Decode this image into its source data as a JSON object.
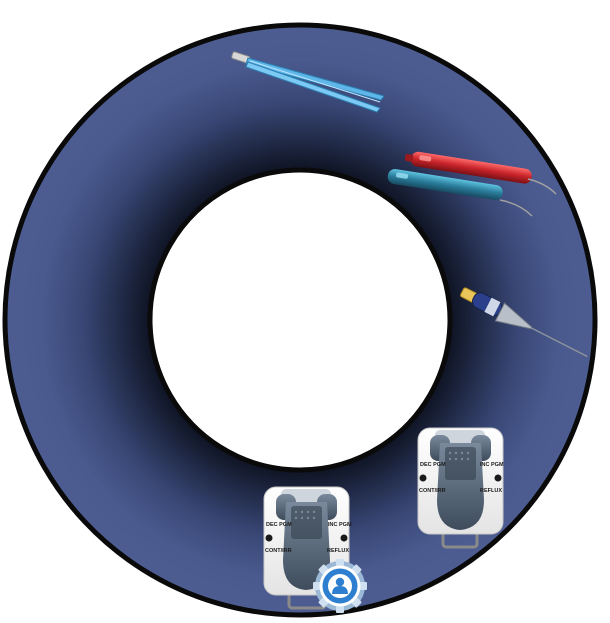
{
  "ring": {
    "outer_color": "#4a5a8e",
    "inner_shadow_color": "#0d1220",
    "border_color": "#0a0a0a"
  },
  "tools": [
    {
      "name": "forceps",
      "color": "#5fb6e8"
    },
    {
      "name": "red-pen-electrode",
      "color": "#c8242a"
    },
    {
      "name": "teal-pen-electrode",
      "color": "#2a7d9c"
    },
    {
      "name": "cone-probe",
      "color": "#2b3f8a"
    }
  ],
  "pedal_left": {
    "label_tl": "DEC PGM",
    "label_tr": "INC PGM",
    "label_bl": "CONT/IRR",
    "label_br": "REFLUX"
  },
  "pedal_right": {
    "label_tl": "DEC PGM",
    "label_tr": "INC PGM",
    "label_bl": "CONT/IRR",
    "label_br": "REFLUX"
  },
  "badge": {
    "icon": "user-gear-icon",
    "color": "#2f7fd0"
  }
}
